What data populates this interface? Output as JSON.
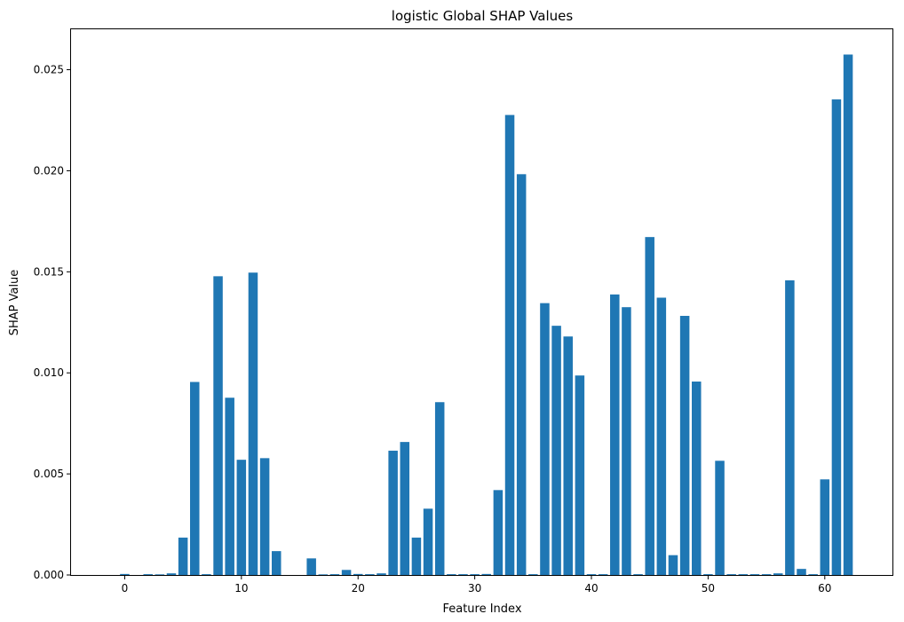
{
  "chart_data": {
    "type": "bar",
    "title": "logistic Global SHAP Values",
    "xlabel": "Feature Index",
    "ylabel": "SHAP Value",
    "x": [
      0,
      1,
      2,
      3,
      4,
      5,
      6,
      7,
      8,
      9,
      10,
      11,
      12,
      13,
      14,
      15,
      16,
      17,
      18,
      19,
      20,
      21,
      22,
      23,
      24,
      25,
      26,
      27,
      28,
      29,
      30,
      31,
      32,
      33,
      34,
      35,
      36,
      37,
      38,
      39,
      40,
      41,
      42,
      43,
      44,
      45,
      46,
      47,
      48,
      49,
      50,
      51,
      52,
      53,
      54,
      55,
      56,
      57,
      58,
      59,
      60,
      61,
      62
    ],
    "values": [
      5e-05,
      0,
      4e-05,
      3e-05,
      8e-05,
      0.00185,
      0.00955,
      4e-05,
      0.01478,
      0.00877,
      0.0057,
      0.01496,
      0.00578,
      0.00118,
      0,
      0,
      0.00082,
      3e-05,
      4e-05,
      0.00025,
      5e-05,
      4e-05,
      8e-05,
      0.00615,
      0.00658,
      0.00185,
      0.00328,
      0.00855,
      4e-05,
      4e-05,
      4e-05,
      5e-05,
      0.0042,
      0.02276,
      0.01983,
      4e-05,
      0.01345,
      0.01233,
      0.0118,
      0.00987,
      4e-05,
      4e-05,
      0.01388,
      0.01325,
      4e-05,
      0.01672,
      0.01372,
      0.00098,
      0.01282,
      0.00957,
      4e-05,
      0.00565,
      4e-05,
      4e-05,
      4e-05,
      4e-05,
      8e-05,
      0.01458,
      0.0003,
      4e-05,
      0.00473,
      0.02353,
      0.02575
    ],
    "xlim": [
      -4.6,
      65.8
    ],
    "ylim": [
      0,
      0.027
    ],
    "xticks": [
      0,
      10,
      20,
      30,
      40,
      50,
      60
    ],
    "xtick_labels": [
      "0",
      "10",
      "20",
      "30",
      "40",
      "50",
      "60"
    ],
    "yticks": [
      0,
      0.005,
      0.01,
      0.015,
      0.02,
      0.025
    ],
    "ytick_labels": [
      "0.000",
      "0.005",
      "0.010",
      "0.015",
      "0.020",
      "0.025"
    ],
    "bar_color": "#1f77b4",
    "grid": false,
    "legend": "none"
  }
}
